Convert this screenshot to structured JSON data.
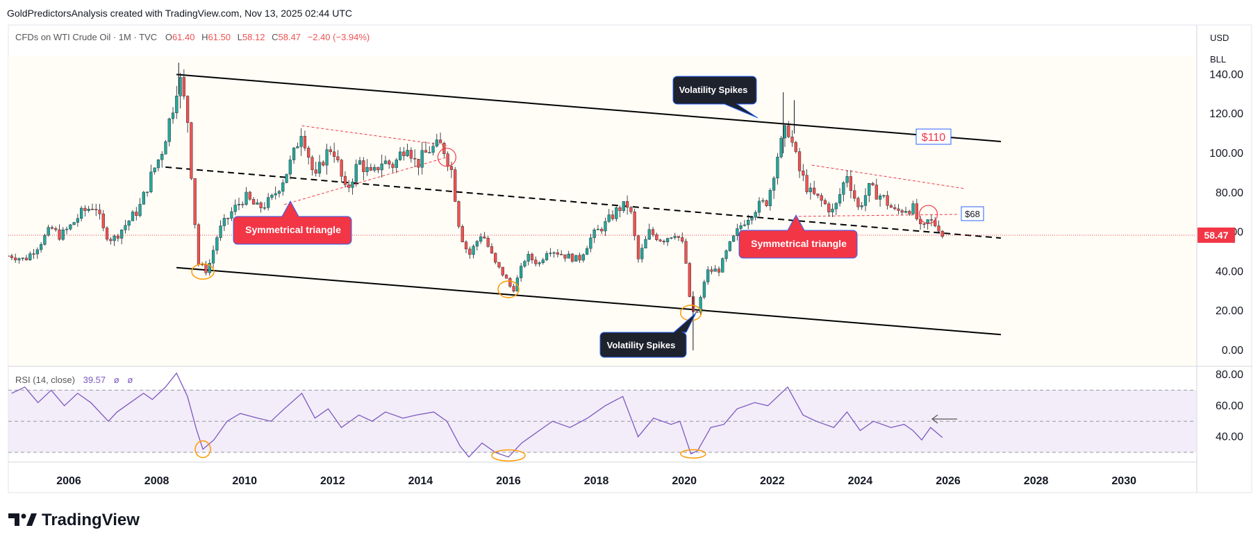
{
  "header": {
    "credit": "GoldPredictorsAnalysis created with TradingView.com, Nov 13, 2025 02:44 UTC"
  },
  "legend": {
    "symbol": "CFDs on WTI Crude Oil · 1M · TVC",
    "open_label": "O",
    "open": "61.40",
    "high_label": "H",
    "high": "61.50",
    "low_label": "L",
    "low": "58.12",
    "close_label": "C",
    "close": "58.47",
    "change": "−2.40 (−3.94%)"
  },
  "scale_buttons": {
    "currency": "USD",
    "unit": "BLL"
  },
  "rsi_legend": {
    "name": "RSI (14, close)",
    "value": "39.57",
    "extra1": "ø",
    "extra2": "ø"
  },
  "last_price_tag": "58.47",
  "annotations": {
    "volatility_top": "Volatility Spikes",
    "volatility_bottom": "Volatility Spikes",
    "triangle_left": "Symmetrical triangle",
    "triangle_right": "Symmetrical triangle",
    "price_110": "$110",
    "price_68": "$68"
  },
  "logo_text": "TradingView",
  "colors": {
    "up": "#26a69a",
    "down": "#ef5350",
    "rsi": "#7e57c2",
    "label_red": "#f23645",
    "channel": "#000000",
    "orange": "#ff9800",
    "last_line": "#f23645"
  },
  "chart_data": [
    {
      "type": "candlestick",
      "title": "",
      "x_ticks": [
        "2006",
        "2008",
        "2010",
        "2012",
        "2014",
        "2016",
        "2018",
        "2020",
        "2022",
        "2024",
        "2026",
        "2028",
        "2030"
      ],
      "y_ticks": [
        "0.00",
        "20.00",
        "40.00",
        "60.00",
        "80.00",
        "100.00",
        "120.00",
        "140.00"
      ],
      "ylim": [
        -4,
        143
      ],
      "xlim": [
        2004.6,
        2031.6
      ],
      "series": [
        {
          "close": [
            {
              "t": 2004.7,
              "v": 48
            },
            {
              "t": 2005.0,
              "v": 46
            },
            {
              "t": 2005.3,
              "v": 53
            },
            {
              "t": 2005.6,
              "v": 62
            },
            {
              "t": 2005.8,
              "v": 58
            },
            {
              "t": 2006.0,
              "v": 62
            },
            {
              "t": 2006.3,
              "v": 70
            },
            {
              "t": 2006.6,
              "v": 74
            },
            {
              "t": 2006.8,
              "v": 60
            },
            {
              "t": 2007.0,
              "v": 56
            },
            {
              "t": 2007.3,
              "v": 64
            },
            {
              "t": 2007.6,
              "v": 72
            },
            {
              "t": 2007.9,
              "v": 90
            },
            {
              "t": 2008.1,
              "v": 100
            },
            {
              "t": 2008.35,
              "v": 122
            },
            {
              "t": 2008.5,
              "v": 140
            },
            {
              "t": 2008.7,
              "v": 118
            },
            {
              "t": 2008.85,
              "v": 70
            },
            {
              "t": 2008.95,
              "v": 44
            },
            {
              "t": 2009.15,
              "v": 40
            },
            {
              "t": 2009.4,
              "v": 60
            },
            {
              "t": 2009.7,
              "v": 70
            },
            {
              "t": 2010.0,
              "v": 78
            },
            {
              "t": 2010.3,
              "v": 72
            },
            {
              "t": 2010.6,
              "v": 76
            },
            {
              "t": 2010.9,
              "v": 88
            },
            {
              "t": 2011.1,
              "v": 98
            },
            {
              "t": 2011.3,
              "v": 113
            },
            {
              "t": 2011.6,
              "v": 86
            },
            {
              "t": 2011.8,
              "v": 98
            },
            {
              "t": 2012.0,
              "v": 104
            },
            {
              "t": 2012.3,
              "v": 80
            },
            {
              "t": 2012.6,
              "v": 96
            },
            {
              "t": 2012.9,
              "v": 88
            },
            {
              "t": 2013.1,
              "v": 96
            },
            {
              "t": 2013.4,
              "v": 94
            },
            {
              "t": 2013.7,
              "v": 106
            },
            {
              "t": 2013.9,
              "v": 94
            },
            {
              "t": 2014.2,
              "v": 102
            },
            {
              "t": 2014.5,
              "v": 104
            },
            {
              "t": 2014.7,
              "v": 92
            },
            {
              "t": 2014.9,
              "v": 60
            },
            {
              "t": 2015.1,
              "v": 48
            },
            {
              "t": 2015.4,
              "v": 60
            },
            {
              "t": 2015.7,
              "v": 44
            },
            {
              "t": 2015.9,
              "v": 38
            },
            {
              "t": 2016.1,
              "v": 30
            },
            {
              "t": 2016.4,
              "v": 48
            },
            {
              "t": 2016.7,
              "v": 44
            },
            {
              "t": 2016.9,
              "v": 52
            },
            {
              "t": 2017.3,
              "v": 48
            },
            {
              "t": 2017.6,
              "v": 46
            },
            {
              "t": 2017.9,
              "v": 58
            },
            {
              "t": 2018.2,
              "v": 64
            },
            {
              "t": 2018.5,
              "v": 72
            },
            {
              "t": 2018.75,
              "v": 74
            },
            {
              "t": 2018.95,
              "v": 46
            },
            {
              "t": 2019.2,
              "v": 60
            },
            {
              "t": 2019.5,
              "v": 56
            },
            {
              "t": 2019.8,
              "v": 60
            },
            {
              "t": 2020.0,
              "v": 52
            },
            {
              "t": 2020.15,
              "v": 20
            },
            {
              "t": 2020.3,
              "v": 19
            },
            {
              "t": 2020.5,
              "v": 40
            },
            {
              "t": 2020.8,
              "v": 41
            },
            {
              "t": 2021.0,
              "v": 52
            },
            {
              "t": 2021.3,
              "v": 64
            },
            {
              "t": 2021.6,
              "v": 72
            },
            {
              "t": 2021.9,
              "v": 76
            },
            {
              "t": 2022.1,
              "v": 98
            },
            {
              "t": 2022.35,
              "v": 114
            },
            {
              "t": 2022.6,
              "v": 92
            },
            {
              "t": 2022.85,
              "v": 80
            },
            {
              "t": 2023.1,
              "v": 76
            },
            {
              "t": 2023.4,
              "v": 70
            },
            {
              "t": 2023.7,
              "v": 90
            },
            {
              "t": 2023.95,
              "v": 72
            },
            {
              "t": 2024.2,
              "v": 82
            },
            {
              "t": 2024.5,
              "v": 78
            },
            {
              "t": 2024.8,
              "v": 70
            },
            {
              "t": 2025.0,
              "v": 72
            },
            {
              "t": 2025.2,
              "v": 72
            },
            {
              "t": 2025.4,
              "v": 60
            },
            {
              "t": 2025.55,
              "v": 66
            },
            {
              "t": 2025.7,
              "v": 64
            },
            {
              "t": 2025.85,
              "v": 61.4
            },
            {
              "t": 2025.87,
              "v": 58.47
            }
          ]
        }
      ],
      "channel": {
        "upper": [
          [
            2008.45,
            140
          ],
          [
            2027.2,
            106
          ]
        ],
        "lower": [
          [
            2008.45,
            42
          ],
          [
            2027.2,
            8
          ]
        ],
        "mid": [
          [
            2008.45,
            92
          ],
          [
            2027.2,
            57
          ]
        ]
      },
      "last_price": 58.47
    },
    {
      "type": "line",
      "title": "",
      "y_ticks": [
        "40.00",
        "60.00",
        "80.00"
      ],
      "ylim": [
        20,
        84
      ],
      "levels": [
        30,
        50,
        70
      ],
      "series": [
        {
          "name": "RSI (14, close)",
          "points": [
            {
              "t": 2004.7,
              "v": 68
            },
            {
              "t": 2005.0,
              "v": 72
            },
            {
              "t": 2005.3,
              "v": 62
            },
            {
              "t": 2005.6,
              "v": 70
            },
            {
              "t": 2005.9,
              "v": 60
            },
            {
              "t": 2006.2,
              "v": 68
            },
            {
              "t": 2006.5,
              "v": 62
            },
            {
              "t": 2006.9,
              "v": 50
            },
            {
              "t": 2007.1,
              "v": 56
            },
            {
              "t": 2007.4,
              "v": 62
            },
            {
              "t": 2007.7,
              "v": 68
            },
            {
              "t": 2007.9,
              "v": 64
            },
            {
              "t": 2008.2,
              "v": 72
            },
            {
              "t": 2008.45,
              "v": 81
            },
            {
              "t": 2008.7,
              "v": 66
            },
            {
              "t": 2008.9,
              "v": 45
            },
            {
              "t": 2009.05,
              "v": 32
            },
            {
              "t": 2009.3,
              "v": 38
            },
            {
              "t": 2009.6,
              "v": 50
            },
            {
              "t": 2009.9,
              "v": 55
            },
            {
              "t": 2010.3,
              "v": 52
            },
            {
              "t": 2010.6,
              "v": 50
            },
            {
              "t": 2010.9,
              "v": 58
            },
            {
              "t": 2011.3,
              "v": 68
            },
            {
              "t": 2011.6,
              "v": 52
            },
            {
              "t": 2011.9,
              "v": 58
            },
            {
              "t": 2012.2,
              "v": 46
            },
            {
              "t": 2012.6,
              "v": 54
            },
            {
              "t": 2012.9,
              "v": 50
            },
            {
              "t": 2013.2,
              "v": 56
            },
            {
              "t": 2013.6,
              "v": 52
            },
            {
              "t": 2013.9,
              "v": 54
            },
            {
              "t": 2014.3,
              "v": 56
            },
            {
              "t": 2014.6,
              "v": 50
            },
            {
              "t": 2014.9,
              "v": 34
            },
            {
              "t": 2015.1,
              "v": 27
            },
            {
              "t": 2015.4,
              "v": 36
            },
            {
              "t": 2015.7,
              "v": 30
            },
            {
              "t": 2016.0,
              "v": 27
            },
            {
              "t": 2016.3,
              "v": 36
            },
            {
              "t": 2016.7,
              "v": 44
            },
            {
              "t": 2017.0,
              "v": 50
            },
            {
              "t": 2017.4,
              "v": 46
            },
            {
              "t": 2017.8,
              "v": 52
            },
            {
              "t": 2018.2,
              "v": 60
            },
            {
              "t": 2018.6,
              "v": 66
            },
            {
              "t": 2018.95,
              "v": 40
            },
            {
              "t": 2019.3,
              "v": 52
            },
            {
              "t": 2019.7,
              "v": 48
            },
            {
              "t": 2019.9,
              "v": 50
            },
            {
              "t": 2020.15,
              "v": 29
            },
            {
              "t": 2020.3,
              "v": 31
            },
            {
              "t": 2020.6,
              "v": 46
            },
            {
              "t": 2020.9,
              "v": 48
            },
            {
              "t": 2021.2,
              "v": 58
            },
            {
              "t": 2021.6,
              "v": 62
            },
            {
              "t": 2021.9,
              "v": 60
            },
            {
              "t": 2022.35,
              "v": 72
            },
            {
              "t": 2022.7,
              "v": 54
            },
            {
              "t": 2023.0,
              "v": 50
            },
            {
              "t": 2023.4,
              "v": 46
            },
            {
              "t": 2023.7,
              "v": 56
            },
            {
              "t": 2024.0,
              "v": 44
            },
            {
              "t": 2024.3,
              "v": 50
            },
            {
              "t": 2024.7,
              "v": 46
            },
            {
              "t": 2025.0,
              "v": 48
            },
            {
              "t": 2025.2,
              "v": 44
            },
            {
              "t": 2025.4,
              "v": 38
            },
            {
              "t": 2025.6,
              "v": 46
            },
            {
              "t": 2025.87,
              "v": 39.57
            }
          ]
        }
      ]
    }
  ]
}
